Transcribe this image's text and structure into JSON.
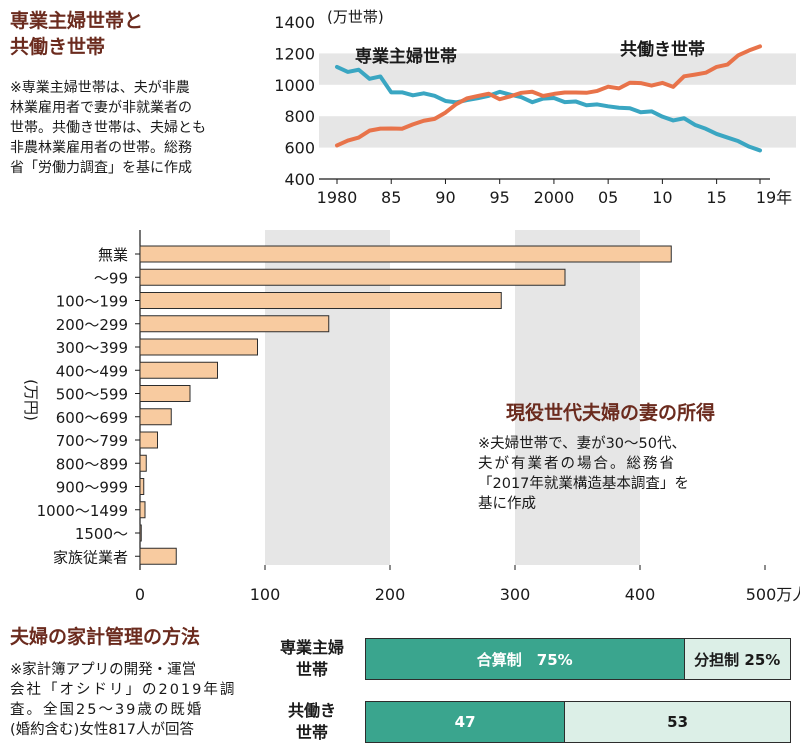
{
  "line_section": {
    "title_line1": "専業主婦世帯と",
    "title_line2": "共働き世帯",
    "note_lines": [
      "※専業主婦世帯は、夫が非農",
      "林業雇用者で妻が非就業者の",
      "世帯。共働き世帯は、夫婦とも",
      "非農林業雇用者の世帯。総務",
      "省「労働力調査」を基に作成"
    ]
  },
  "bar_section": {
    "title": "現役世代夫婦の妻の所得",
    "note_lines": [
      "※夫婦世帯で、妻が30～50代、",
      "夫が有業者の場合。総務省",
      "「2017年就業構造基本調査」を",
      "基に作成"
    ]
  },
  "management_section": {
    "title": "夫婦の家計管理の方法",
    "note_lines": [
      "※家計簿アプリの開発・運営",
      "会社「オシドリ」の2019年調",
      "査。全国25～39歳の既婚",
      "(婚約含む)女性817人が回答"
    ]
  },
  "chart_data": [
    {
      "type": "line",
      "x": [
        1980,
        1981,
        1982,
        1983,
        1984,
        1985,
        1986,
        1987,
        1988,
        1989,
        1990,
        1991,
        1992,
        1993,
        1994,
        1995,
        1996,
        1997,
        1998,
        1999,
        2000,
        2001,
        2002,
        2003,
        2004,
        2005,
        2006,
        2007,
        2008,
        2009,
        2010,
        2011,
        2012,
        2013,
        2014,
        2015,
        2016,
        2017,
        2018,
        2019
      ],
      "series": [
        {
          "name": "専業主婦世帯",
          "color": "#3aa6c2",
          "values": [
            1114,
            1082,
            1096,
            1038,
            1053,
            952,
            952,
            933,
            946,
            930,
            897,
            888,
            903,
            915,
            930,
            955,
            937,
            921,
            889,
            912,
            916,
            890,
            894,
            870,
            875,
            863,
            854,
            851,
            825,
            831,
            797,
            773,
            787,
            745,
            720,
            687,
            664,
            641,
            606,
            582
          ]
        },
        {
          "name": "共働き世帯",
          "color": "#e8734a",
          "values": [
            614,
            645,
            664,
            708,
            721,
            722,
            720,
            748,
            771,
            783,
            823,
            877,
            914,
            929,
            943,
            908,
            927,
            949,
            956,
            929,
            942,
            951,
            951,
            949,
            961,
            988,
            977,
            1013,
            1011,
            995,
            1012,
            987,
            1054,
            1065,
            1077,
            1114,
            1129,
            1188,
            1219,
            1245
          ]
        }
      ],
      "ylabel": "(万世帯)",
      "ylim": [
        400,
        1400
      ],
      "yticks": [
        400,
        600,
        800,
        1000,
        1200,
        1400
      ],
      "xtick_values": [
        1980,
        1985,
        1990,
        1995,
        2000,
        2005,
        2010,
        2015,
        2019
      ],
      "xtick_labels": [
        "1980",
        "85",
        "90",
        "95",
        "2000",
        "05",
        "10",
        "15",
        "19年"
      ],
      "band_ranges": [
        [
          600,
          800
        ],
        [
          1000,
          1200
        ]
      ]
    },
    {
      "type": "bar",
      "orientation": "horizontal",
      "categories": [
        "無業",
        "～99",
        "100～199",
        "200～299",
        "300～399",
        "400～499",
        "500～599",
        "600～699",
        "700～799",
        "800～899",
        "900～999",
        "1000～1499",
        "1500～",
        "家族従業者"
      ],
      "values": [
        425,
        340,
        289,
        151,
        94,
        62,
        40,
        25,
        14,
        5,
        3,
        4,
        1,
        29
      ],
      "ylabel": "(万円)",
      "xlim": [
        0,
        500
      ],
      "xticks": [
        0,
        100,
        200,
        300,
        400,
        500
      ],
      "xtick_labels": [
        "0",
        "100",
        "200",
        "300",
        "400",
        "500万人"
      ],
      "bar_color": "#f8cba0"
    },
    {
      "type": "bar",
      "orientation": "horizontal-stacked",
      "categories": [
        "専業主婦世帯",
        "共働き世帯"
      ],
      "category_labels": [
        [
          "専業主婦",
          "世帯"
        ],
        [
          "共働き",
          "世帯"
        ]
      ],
      "series": [
        {
          "name": "合算制",
          "color": "#3aa58e",
          "values": [
            75,
            47
          ]
        },
        {
          "name": "分担制",
          "color": "#dcefe7",
          "values": [
            25,
            53
          ]
        }
      ],
      "segment_labels": [
        [
          "合算制　75%",
          "分担制 25%"
        ],
        [
          "47",
          "53"
        ]
      ]
    }
  ]
}
